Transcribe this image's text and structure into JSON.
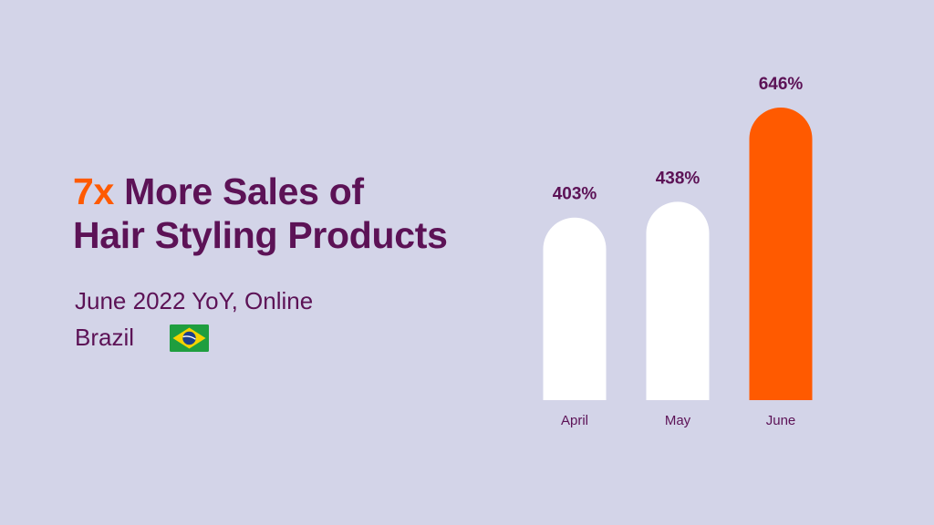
{
  "headline": {
    "accent": "7x",
    "line1_rest": " More Sales of",
    "line2": "Hair Styling Products"
  },
  "subtitle": "June 2022 YoY, Online",
  "country": "Brazil",
  "flag_icon": "brazil-flag-icon",
  "colors": {
    "background": "#d3d4e8",
    "text": "#5c1256",
    "accent": "#ff5a00",
    "bar_default": "#ffffff",
    "bar_highlight": "#ff5a00"
  },
  "chart_data": {
    "type": "bar",
    "categories": [
      "April",
      "May",
      "June"
    ],
    "values": [
      403,
      438,
      646
    ],
    "value_labels": [
      "403%",
      "438%",
      "646%"
    ],
    "highlight_index": 2,
    "ylim": [
      0,
      646
    ],
    "grid": false,
    "title": "",
    "xlabel": "",
    "ylabel": ""
  }
}
